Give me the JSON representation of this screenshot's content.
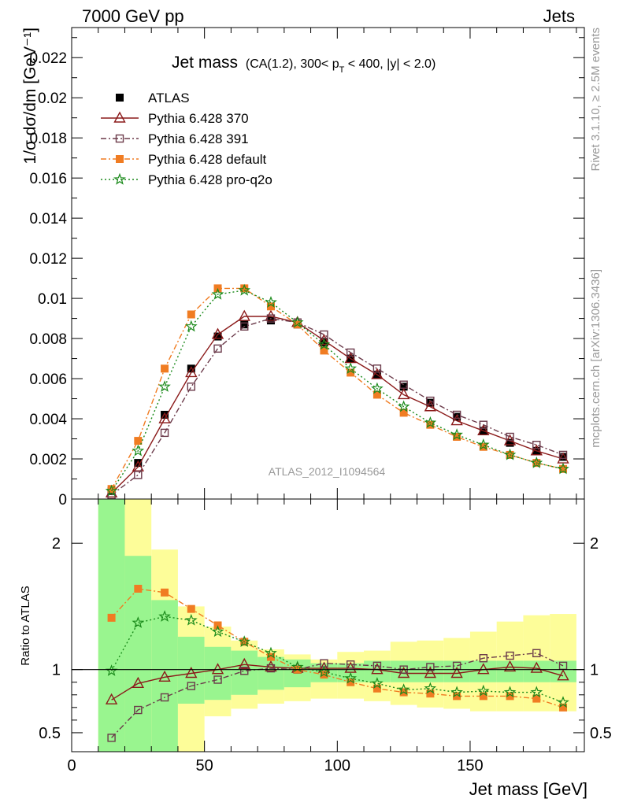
{
  "header": {
    "left": "7000 GeV pp",
    "right": "Jets"
  },
  "side_text": {
    "top": "Rivet 3.1.10, ≥ 2.5M events",
    "bottom": "mcplots.cern.ch [arXiv:1306.3436]"
  },
  "chart_data": {
    "type": "line",
    "title": "Jet mass",
    "title_detail": "(CA(1.2), 300< p_T < 400, |y| < 2.0)",
    "title_detail_parts": [
      "(CA(1.2), 300< p",
      "T",
      " < 400, |y| < 2.0)"
    ],
    "analysis_id": "ATLAS_2012_I1094564",
    "xlabel": "Jet mass [GeV]",
    "ylabel": "1/σ dσ/dm [GeV⁻¹]",
    "ratio_ylabel": "Ratio to ATLAS",
    "xlim": [
      0,
      193
    ],
    "ylim": [
      0,
      0.0235
    ],
    "ratio_ylim": [
      0.35,
      2.35
    ],
    "x_ticks": [
      0,
      50,
      100,
      150
    ],
    "y_ticks": [
      0,
      0.002,
      0.004,
      0.006,
      0.008,
      0.01,
      0.012,
      0.014,
      0.016,
      0.018,
      0.02,
      0.022
    ],
    "y_tick_labels": [
      "0",
      "0.002",
      "0.004",
      "0.006",
      "0.008",
      "0.01",
      "0.012",
      "0.014",
      "0.016",
      "0.018",
      "0.02",
      "0.022"
    ],
    "ratio_ticks": [
      0.5,
      1,
      2
    ],
    "ratio_tick_labels": [
      "0.5",
      "1",
      "2"
    ],
    "x": [
      15,
      25,
      35,
      45,
      55,
      65,
      75,
      85,
      95,
      105,
      115,
      125,
      135,
      145,
      155,
      165,
      175,
      185
    ],
    "bin_edges": [
      10,
      20,
      30,
      40,
      50,
      60,
      70,
      80,
      90,
      100,
      110,
      120,
      130,
      140,
      150,
      160,
      170,
      180,
      190
    ],
    "series": [
      {
        "name": "ATLAS",
        "marker": "square",
        "color": "#000000",
        "values": [
          0.0004,
          0.0018,
          0.0042,
          0.0065,
          0.0081,
          0.0087,
          0.0089,
          0.0087,
          0.0078,
          0.007,
          0.0062,
          0.0056,
          0.0048,
          0.0041,
          0.0034,
          0.0028,
          0.0024,
          0.0021
        ]
      },
      {
        "name": "Pythia 6.428 370",
        "marker": "triangle-open",
        "color": "#8b1a1a",
        "dash": "",
        "values": [
          0.0003,
          0.0016,
          0.004,
          0.0063,
          0.0082,
          0.0091,
          0.0091,
          0.0088,
          0.0079,
          0.007,
          0.0062,
          0.0052,
          0.0046,
          0.0039,
          0.0034,
          0.0029,
          0.0024,
          0.002
        ],
        "ratio": [
          0.76,
          0.89,
          0.94,
          0.97,
          1.0,
          1.04,
          1.02,
          1.01,
          1.01,
          1.01,
          1.0,
          0.97,
          0.97,
          0.97,
          1.0,
          1.02,
          1.01,
          0.95
        ]
      },
      {
        "name": "Pythia 6.428 391",
        "marker": "square-open",
        "color": "#6b3a4a",
        "dash": "7,3,2,3",
        "values": [
          0.0002,
          0.0012,
          0.0033,
          0.0056,
          0.0075,
          0.0086,
          0.009,
          0.0088,
          0.0082,
          0.0073,
          0.0065,
          0.0057,
          0.0049,
          0.0042,
          0.0037,
          0.0031,
          0.0027,
          0.0022
        ],
        "ratio": [
          0.46,
          0.68,
          0.78,
          0.87,
          0.92,
          0.99,
          1.01,
          1.0,
          1.05,
          1.04,
          1.03,
          1.0,
          1.02,
          1.03,
          1.09,
          1.11,
          1.13,
          1.03
        ]
      },
      {
        "name": "Pythia 6.428 default",
        "marker": "square",
        "color": "#f07c22",
        "dash": "7,3,2,3",
        "values": [
          0.0005,
          0.0029,
          0.0065,
          0.0092,
          0.0105,
          0.0105,
          0.0096,
          0.0087,
          0.0074,
          0.0063,
          0.0052,
          0.0043,
          0.0037,
          0.0031,
          0.0026,
          0.0022,
          0.0018,
          0.0015
        ],
        "ratio": [
          1.41,
          1.64,
          1.61,
          1.48,
          1.35,
          1.22,
          1.1,
          1.0,
          0.96,
          0.9,
          0.85,
          0.82,
          0.81,
          0.79,
          0.79,
          0.79,
          0.77,
          0.7
        ]
      },
      {
        "name": "Pythia 6.428 pro-q2o",
        "marker": "star",
        "color": "#1a8a1a",
        "dash": "2,3",
        "values": [
          0.0004,
          0.0024,
          0.0056,
          0.0086,
          0.0102,
          0.0104,
          0.0098,
          0.0088,
          0.0077,
          0.0065,
          0.0055,
          0.0046,
          0.0038,
          0.0032,
          0.0027,
          0.0022,
          0.0018,
          0.0015
        ],
        "ratio": [
          0.99,
          1.37,
          1.42,
          1.39,
          1.3,
          1.22,
          1.13,
          1.02,
          0.98,
          0.93,
          0.89,
          0.84,
          0.85,
          0.82,
          0.83,
          0.82,
          0.82,
          0.74
        ]
      }
    ],
    "uncertainty_bands": {
      "inner_color": "#99f58f",
      "outer_color": "#fdfd99",
      "inner_low": [
        0.34,
        0.34,
        0.34,
        0.73,
        0.76,
        0.8,
        0.84,
        0.86,
        0.9,
        0.9,
        0.9,
        0.9,
        0.9,
        0.9,
        0.9,
        0.9,
        0.9,
        0.9
      ],
      "inner_high": [
        2.35,
        1.9,
        1.55,
        1.26,
        1.18,
        1.15,
        1.1,
        1.08,
        1.05,
        1.05,
        1.07,
        1.07,
        1.07,
        1.07,
        1.07,
        1.07,
        1.07,
        1.07
      ],
      "outer_low": [
        0.34,
        0.34,
        0.34,
        0.34,
        0.63,
        0.69,
        0.73,
        0.75,
        0.77,
        0.77,
        0.75,
        0.72,
        0.7,
        0.69,
        0.67,
        0.67,
        0.67,
        0.67
      ],
      "outer_high": [
        2.35,
        2.35,
        1.95,
        1.5,
        1.34,
        1.23,
        1.16,
        1.12,
        1.08,
        1.14,
        1.15,
        1.22,
        1.23,
        1.25,
        1.3,
        1.38,
        1.43,
        1.44
      ]
    },
    "legend_position": "top-left",
    "grid": false
  }
}
